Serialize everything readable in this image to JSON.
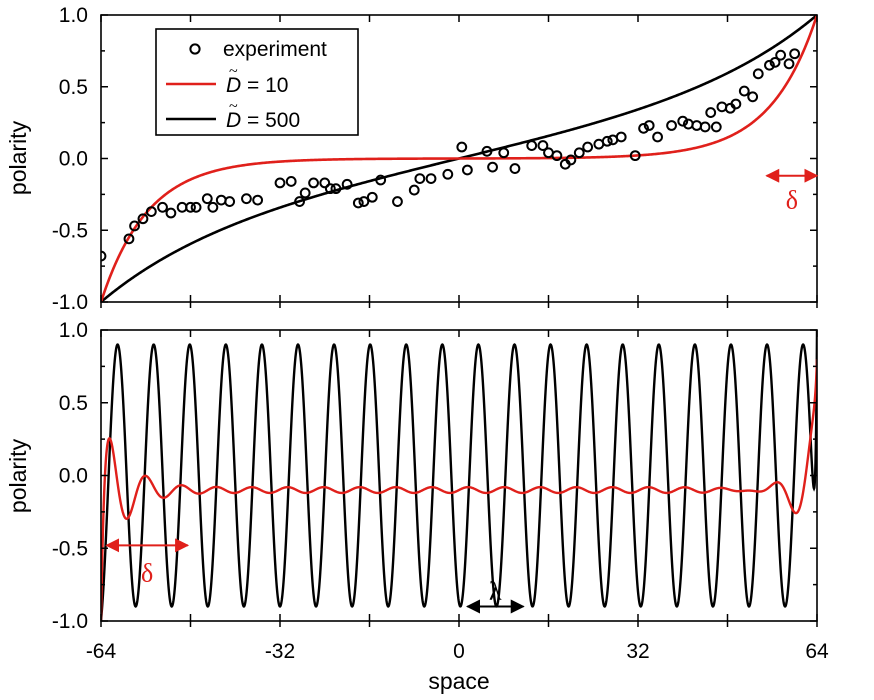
{
  "chart_data": [
    {
      "type": "scatter+line",
      "panel": "top",
      "xlabel": "",
      "ylabel": "polarity",
      "xlim": [
        -64,
        64
      ],
      "ylim": [
        -1.0,
        1.0
      ],
      "yticks": [
        "-1.0",
        "-0.5",
        "0.0",
        "0.5",
        "1.0"
      ],
      "legend": {
        "position": "top-left",
        "entries": [
          {
            "label": "experiment",
            "marker": "open-circle",
            "color": "#000000"
          },
          {
            "label_symbol": "D",
            "label_suffix": " = 10",
            "color": "#e0201b"
          },
          {
            "label_symbol": "D",
            "label_suffix": " = 500",
            "color": "#000000"
          }
        ]
      },
      "series": [
        {
          "name": "experiment",
          "kind": "scatter",
          "points": [
            [
              -64,
              -0.68
            ],
            [
              -59,
              -0.56
            ],
            [
              -58,
              -0.47
            ],
            [
              -56.5,
              -0.42
            ],
            [
              -55,
              -0.37
            ],
            [
              -53,
              -0.34
            ],
            [
              -51.5,
              -0.38
            ],
            [
              -49.5,
              -0.34
            ],
            [
              -48,
              -0.34
            ],
            [
              -47,
              -0.34
            ],
            [
              -45,
              -0.28
            ],
            [
              -44,
              -0.34
            ],
            [
              -42.5,
              -0.29
            ],
            [
              -41,
              -0.3
            ],
            [
              -38,
              -0.28
            ],
            [
              -36,
              -0.29
            ],
            [
              -32,
              -0.17
            ],
            [
              -30,
              -0.16
            ],
            [
              -28.5,
              -0.3
            ],
            [
              -27.5,
              -0.24
            ],
            [
              -26,
              -0.17
            ],
            [
              -24,
              -0.17
            ],
            [
              -23,
              -0.21
            ],
            [
              -22,
              -0.21
            ],
            [
              -20,
              -0.18
            ],
            [
              -18,
              -0.31
            ],
            [
              -17,
              -0.3
            ],
            [
              -15.5,
              -0.27
            ],
            [
              -14,
              -0.15
            ],
            [
              -11,
              -0.3
            ],
            [
              -8,
              -0.22
            ],
            [
              -7,
              -0.14
            ],
            [
              -5,
              -0.14
            ],
            [
              -2,
              -0.11
            ],
            [
              0.5,
              0.08
            ],
            [
              1.5,
              -0.08
            ],
            [
              5,
              0.05
            ],
            [
              6,
              -0.06
            ],
            [
              8,
              0.04
            ],
            [
              10,
              -0.07
            ],
            [
              13,
              0.09
            ],
            [
              15,
              0.09
            ],
            [
              16,
              0.04
            ],
            [
              17.5,
              0.02
            ],
            [
              19,
              -0.04
            ],
            [
              20,
              -0.01
            ],
            [
              21.5,
              0.04
            ],
            [
              23,
              0.08
            ],
            [
              25,
              0.1
            ],
            [
              26.5,
              0.12
            ],
            [
              27.5,
              0.13
            ],
            [
              29,
              0.15
            ],
            [
              31.5,
              0.02
            ],
            [
              33,
              0.21
            ],
            [
              34,
              0.23
            ],
            [
              35.5,
              0.15
            ],
            [
              38,
              0.23
            ],
            [
              40,
              0.26
            ],
            [
              41,
              0.24
            ],
            [
              42.5,
              0.23
            ],
            [
              44,
              0.22
            ],
            [
              45,
              0.32
            ],
            [
              46,
              0.22
            ],
            [
              47,
              0.36
            ],
            [
              48.5,
              0.35
            ],
            [
              49.5,
              0.38
            ],
            [
              51,
              0.47
            ],
            [
              52.5,
              0.43
            ],
            [
              53.5,
              0.59
            ],
            [
              55.5,
              0.65
            ],
            [
              56.5,
              0.67
            ],
            [
              57.5,
              0.72
            ],
            [
              59,
              0.66
            ],
            [
              60,
              0.73
            ]
          ]
        },
        {
          "name": "D = 10",
          "kind": "line",
          "model": "boundary-layer",
          "color": "#e0201b",
          "amplitude": 1.0,
          "decay_length": 1.5
        },
        {
          "name": "D = 500",
          "kind": "line",
          "model": "smooth",
          "color": "#000000",
          "amplitude": 1.0
        }
      ],
      "annotations": [
        {
          "text": "δ",
          "color": "#e0201b",
          "arrow_x": [
            55,
            64
          ],
          "y": -0.12
        }
      ]
    },
    {
      "type": "line",
      "panel": "bottom",
      "xlabel": "space",
      "ylabel": "polarity",
      "xlim": [
        -64,
        64
      ],
      "ylim": [
        -1.0,
        1.0
      ],
      "xticks": [
        "-64",
        "-32",
        "0",
        "32",
        "64"
      ],
      "yticks": [
        "-1.0",
        "-0.5",
        "0.0",
        "0.5",
        "1.0"
      ],
      "series": [
        {
          "name": "D = 500",
          "kind": "line",
          "model": "oscillation",
          "color": "#000000",
          "amplitude": 0.9,
          "wavelength": 6.45
        },
        {
          "name": "D = 10",
          "kind": "line",
          "model": "damped-oscillation",
          "color": "#e0201b",
          "baseline": -0.1,
          "wavelength": 6.45
        }
      ],
      "annotations": [
        {
          "text": "δ",
          "color": "#e0201b",
          "arrow_x": [
            -63,
            -48.5
          ],
          "y": -0.48
        },
        {
          "text": "λ",
          "color": "#000000",
          "arrow_x": [
            1.5,
            11.5
          ],
          "y": -0.9
        }
      ]
    }
  ]
}
